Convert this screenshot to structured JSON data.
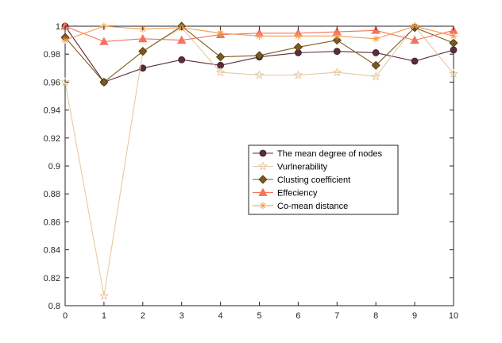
{
  "chart_data": {
    "type": "line",
    "title": "",
    "xlabel": "",
    "ylabel": "",
    "x": [
      0,
      1,
      2,
      3,
      4,
      5,
      6,
      7,
      8,
      9,
      10
    ],
    "xlim": [
      0,
      10
    ],
    "ylim": [
      0.8,
      1.0
    ],
    "x_ticks": [
      "0",
      "1",
      "2",
      "3",
      "4",
      "5",
      "6",
      "7",
      "8",
      "9",
      "10"
    ],
    "y_ticks": [
      "0.8",
      "0.82",
      "0.84",
      "0.86",
      "0.88",
      "0.9",
      "0.92",
      "0.94",
      "0.96",
      "0.98",
      "1"
    ],
    "grid": false,
    "legend_position": "center-right",
    "series": [
      {
        "name": "The mean degree of nodes",
        "color": "#5c2e3a",
        "marker": "circle",
        "values": [
          1.0,
          0.96,
          0.97,
          0.976,
          0.972,
          0.978,
          0.981,
          0.982,
          0.981,
          0.975,
          0.983
        ]
      },
      {
        "name": "Vurlnerability",
        "color": "#e7c9a0",
        "marker": "pentagram",
        "values": [
          0.96,
          0.807,
          0.982,
          0.999,
          0.967,
          0.965,
          0.965,
          0.967,
          0.964,
          1.0,
          0.966
        ]
      },
      {
        "name": "Clusting coefficient",
        "color": "#7b5a1f",
        "marker": "diamond",
        "values": [
          0.992,
          0.96,
          0.982,
          1.0,
          0.978,
          0.979,
          0.985,
          0.99,
          0.972,
          0.999,
          0.988
        ]
      },
      {
        "name": "Effeciency",
        "color": "#f4735f",
        "marker": "triangle",
        "values": [
          1.0,
          0.989,
          0.991,
          0.99,
          0.994,
          0.995,
          0.995,
          0.996,
          0.997,
          0.99,
          0.997
        ]
      },
      {
        "name": "Co-mean distance",
        "color": "#f39c4a",
        "marker": "asterisk",
        "values": [
          0.99,
          1.0,
          0.998,
          0.999,
          0.995,
          0.993,
          0.993,
          0.993,
          0.991,
          1.0,
          0.993
        ]
      }
    ]
  }
}
